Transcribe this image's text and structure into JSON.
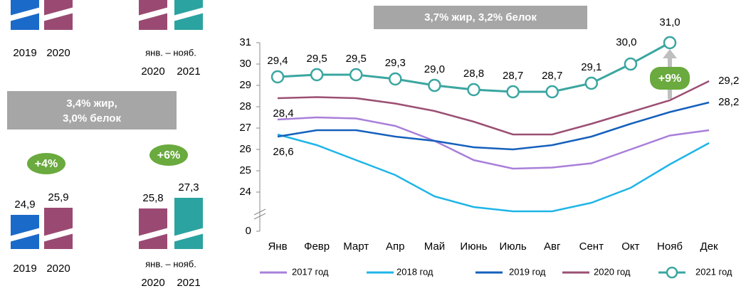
{
  "top_panel": {
    "categories": [
      "2019",
      "2020",
      "2020",
      "2021"
    ],
    "group_label": "янв. – нояб."
  },
  "chart_data": [
    {
      "type": "bar",
      "title_lines": [
        "3,4% жир,",
        "3,0% белок"
      ],
      "categories": [
        "2019",
        "2020",
        "2020",
        "2021"
      ],
      "group_label": "янв. – нояб.",
      "values": [
        24.9,
        25.9,
        25.8,
        27.3
      ],
      "value_labels": [
        "24,9",
        "25,9",
        "25,8",
        "27,3"
      ],
      "colors": [
        "#1a6ac9",
        "#9a4a72",
        "#9a4a72",
        "#2ba3a0"
      ],
      "annotations": [
        "+4%",
        "+6%"
      ]
    },
    {
      "type": "line",
      "title": "3,7% жир, 3,2% белок",
      "categories": [
        "Янв",
        "Февр",
        "Март",
        "Апр",
        "Май",
        "Июнь",
        "Июль",
        "Авг",
        "Сент",
        "Окт",
        "Нояб",
        "Дек"
      ],
      "ylim": [
        0,
        31
      ],
      "yticks": [
        0,
        24,
        25,
        26,
        27,
        28,
        29,
        30,
        31
      ],
      "axis_break": true,
      "annotation": "+9%",
      "series": [
        {
          "name": "2017 год",
          "color": "#a97fd9",
          "values": [
            27.4,
            27.5,
            27.45,
            27.1,
            26.4,
            25.5,
            25.1,
            25.15,
            25.35,
            26.0,
            26.65,
            26.9
          ]
        },
        {
          "name": "2018 год",
          "color": "#1fb5e8",
          "values": [
            26.7,
            26.2,
            25.5,
            24.8,
            23.8,
            23.3,
            23.1,
            23.1,
            23.5,
            24.2,
            25.3,
            26.3
          ]
        },
        {
          "name": "2019 год",
          "color": "#1560bd",
          "values": [
            26.6,
            26.9,
            26.9,
            26.6,
            26.4,
            26.1,
            26.0,
            26.2,
            26.6,
            27.2,
            27.75,
            28.2
          ],
          "value_labels": [
            "26,6",
            null,
            null,
            null,
            null,
            null,
            null,
            null,
            null,
            null,
            null,
            "28,2"
          ]
        },
        {
          "name": "2020 год",
          "color": "#9b4f73",
          "values": [
            28.4,
            28.45,
            28.4,
            28.15,
            27.8,
            27.3,
            26.7,
            26.7,
            27.2,
            27.75,
            28.3,
            29.2
          ],
          "value_labels": [
            "28,4",
            null,
            null,
            null,
            null,
            null,
            null,
            null,
            null,
            null,
            null,
            "29,2"
          ]
        },
        {
          "name": "2021 год",
          "color": "#3aa6a0",
          "markers": true,
          "values": [
            29.4,
            29.5,
            29.5,
            29.3,
            29.0,
            28.8,
            28.7,
            28.7,
            29.1,
            30.0,
            31.0,
            null
          ],
          "value_labels": [
            "29,4",
            "29,5",
            "29,5",
            "29,3",
            "29,0",
            "28,8",
            "28,7",
            "28,7",
            "29,1",
            "30,0",
            "31,0",
            null
          ]
        }
      ]
    }
  ]
}
